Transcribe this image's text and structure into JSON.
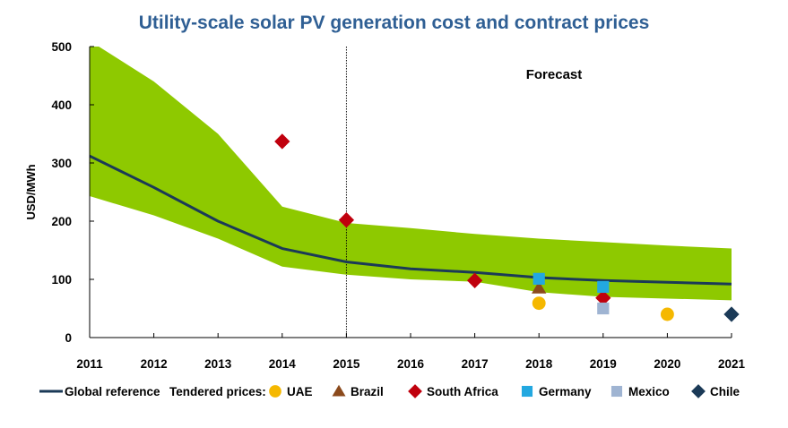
{
  "chart_data": {
    "type": "line",
    "title": "Utility-scale solar PV generation cost and contract prices",
    "ylabel": "USD/MWh",
    "xlabel": "",
    "xlim": [
      2011,
      2021
    ],
    "ylim": [
      0,
      500
    ],
    "yticks": [
      0,
      100,
      200,
      300,
      400,
      500
    ],
    "xticks": [
      2011,
      2012,
      2013,
      2014,
      2015,
      2016,
      2017,
      2018,
      2019,
      2020,
      2021
    ],
    "annotation": "Forecast",
    "forecast_start": 2015,
    "grid": false,
    "legend_position": "bottom",
    "tendered_prices_label": "Tendered prices:",
    "range_band": {
      "color": "#8ec900",
      "x": [
        2011,
        2012,
        2013,
        2014,
        2015,
        2016,
        2017,
        2018,
        2019,
        2020,
        2021
      ],
      "upper": [
        510,
        440,
        350,
        225,
        197,
        188,
        178,
        170,
        164,
        158,
        153
      ],
      "lower": [
        243,
        210,
        170,
        122,
        108,
        100,
        96,
        78,
        70,
        67,
        64
      ]
    },
    "series": [
      {
        "name": "Global reference",
        "kind": "line",
        "color": "#1b3a57",
        "x": [
          2011,
          2012,
          2013,
          2014,
          2015,
          2016,
          2017,
          2018,
          2019,
          2020,
          2021
        ],
        "y": [
          312,
          258,
          200,
          153,
          130,
          118,
          112,
          103,
          98,
          95,
          92
        ]
      },
      {
        "name": "UAE",
        "kind": "marker",
        "marker": "circle",
        "color": "#f5b800",
        "x": [
          2018,
          2020
        ],
        "y": [
          59,
          40
        ]
      },
      {
        "name": "Brazil",
        "kind": "marker",
        "marker": "triangle",
        "color": "#8b4a1c",
        "x": [
          2018
        ],
        "y": [
          85
        ]
      },
      {
        "name": "South Africa",
        "kind": "marker",
        "marker": "diamond",
        "color": "#c0000d",
        "x": [
          2014,
          2015,
          2017,
          2019
        ],
        "y": [
          337,
          202,
          98,
          68
        ]
      },
      {
        "name": "Germany",
        "kind": "marker",
        "marker": "square",
        "color": "#23a8e0",
        "x": [
          2018,
          2019
        ],
        "y": [
          101,
          87
        ]
      },
      {
        "name": "Mexico",
        "kind": "marker",
        "marker": "square",
        "color": "#9fb4d2",
        "x": [
          2019
        ],
        "y": [
          50
        ]
      },
      {
        "name": "Chile",
        "kind": "marker",
        "marker": "diamond",
        "color": "#1b3a57",
        "x": [
          2021
        ],
        "y": [
          40
        ]
      }
    ]
  }
}
